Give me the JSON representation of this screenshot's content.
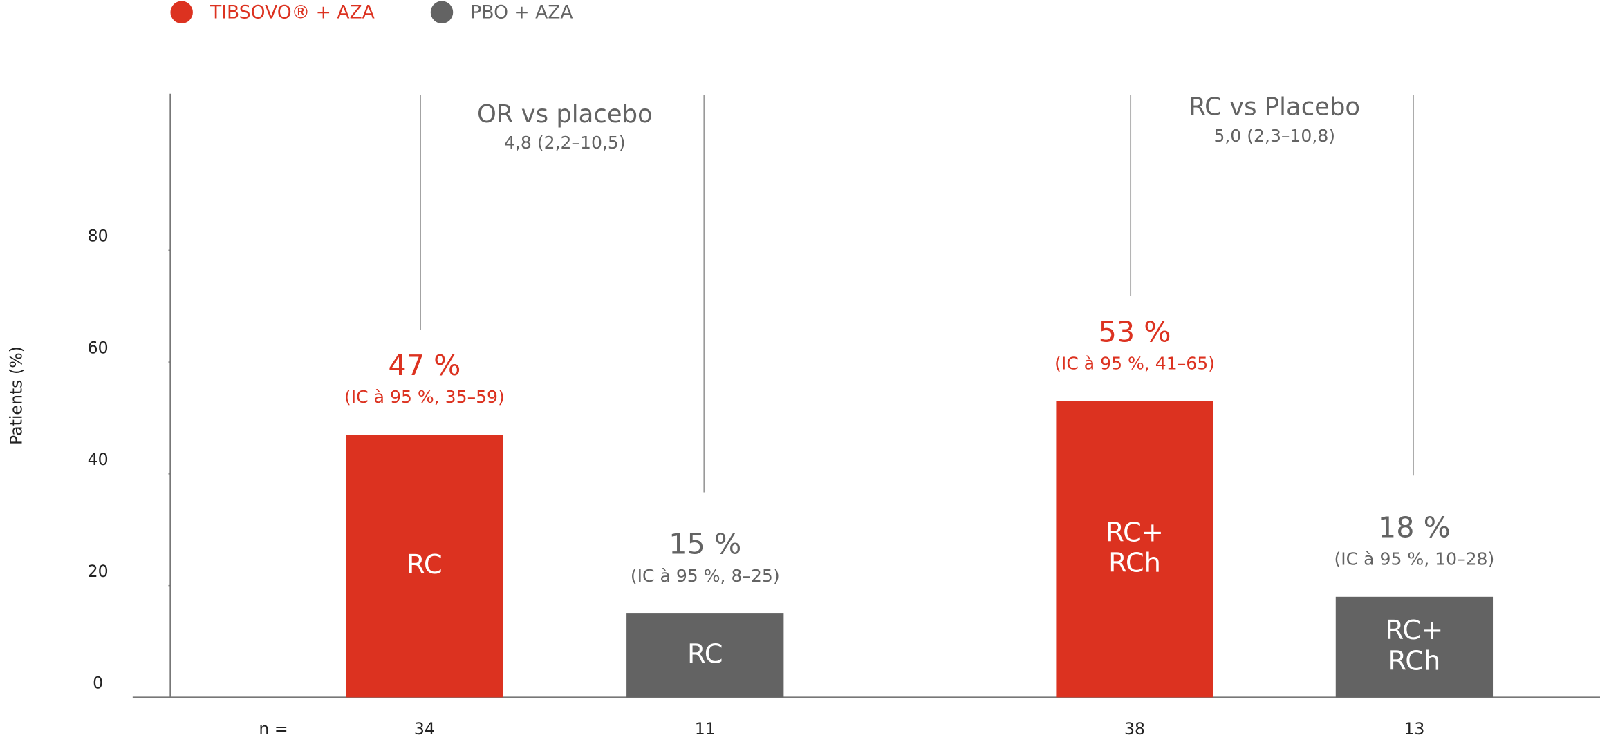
{
  "chart_data": {
    "type": "bar",
    "y_label": "Patients (%)",
    "ylim": [
      0,
      108
    ],
    "yticks": [
      0,
      20,
      40,
      60,
      80
    ],
    "legend": "top-left",
    "n_label": "n =",
    "series": [
      {
        "name": "TIBSOVO® + AZA",
        "color": "#dc3220",
        "values": [
          47,
          53
        ],
        "value_labels": [
          "47 %",
          "53 %"
        ],
        "ci_labels": [
          "(IC à 95 %, 35–59)",
          "(IC à 95 %, 41–65)"
        ],
        "bar_labels": [
          [
            "RC"
          ],
          [
            "RC+",
            "RCh"
          ]
        ],
        "n": [
          34,
          38
        ]
      },
      {
        "name": "PBO + AZA",
        "color": "#636363",
        "values": [
          15,
          18
        ],
        "value_labels": [
          "15 %",
          "18 %"
        ],
        "ci_labels": [
          "(IC à 95 %, 8–25)",
          "(IC à 95 %, 10–28)"
        ],
        "bar_labels": [
          [
            "RC"
          ],
          [
            "RC+",
            "RCh"
          ]
        ],
        "n": [
          11,
          13
        ]
      }
    ],
    "comparisons": [
      {
        "title": "OR vs placebo",
        "value": "4,8 (2,2–10,5)"
      },
      {
        "title": "RC vs Placebo",
        "value": "5,0 (2,3–10,8)"
      }
    ]
  }
}
